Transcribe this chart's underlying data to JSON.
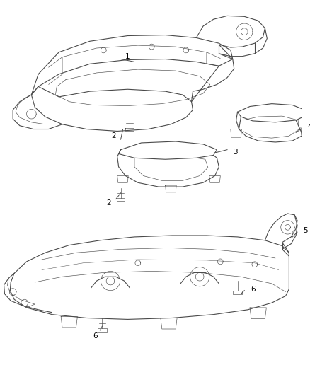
{
  "background_color": "#ffffff",
  "line_color": "#4a4a4a",
  "label_color": "#000000",
  "fig_width": 4.38,
  "fig_height": 5.33,
  "dpi": 100,
  "lw_main": 0.8,
  "lw_thin": 0.45,
  "lw_inner": 0.35
}
